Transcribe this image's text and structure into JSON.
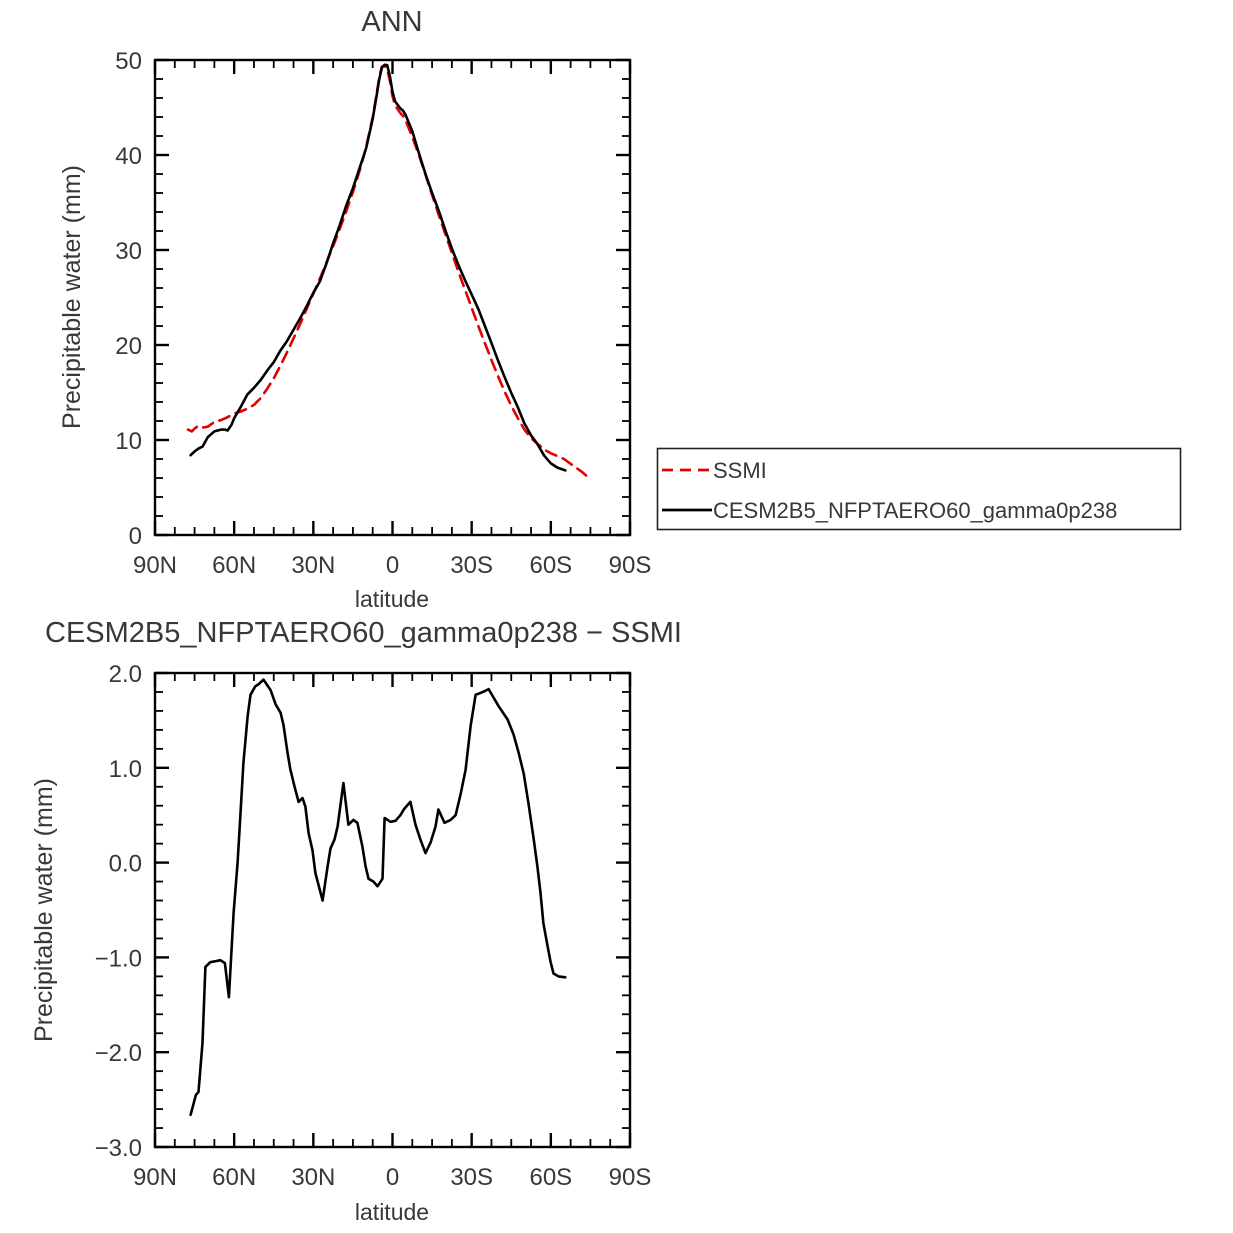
{
  "figure": {
    "background": "#ffffff",
    "text_color": "#383838",
    "axis_color": "#000000"
  },
  "legend": {
    "entries": [
      {
        "label": "SSMI",
        "color": "#e50000",
        "dashed": true
      },
      {
        "label": "CESM2B5_NFPTAERO60_gamma0p238",
        "color": "#000000",
        "dashed": false
      }
    ]
  },
  "chart_data": [
    {
      "type": "line",
      "title": "ANN",
      "xlabel": "latitude",
      "ylabel": "Precipitable water (mm)",
      "xlim": [
        90,
        -90
      ],
      "ylim": [
        0,
        50
      ],
      "grid": false,
      "legend_position": "outside-right",
      "x_ticks": [
        90,
        60,
        30,
        0,
        -30,
        -60,
        -90
      ],
      "x_tick_labels": [
        "90N",
        "60N",
        "30N",
        "0",
        "30S",
        "60S",
        "90S"
      ],
      "y_ticks": [
        0,
        10,
        20,
        30,
        40,
        50
      ],
      "y_tick_labels": [
        "0",
        "10",
        "20",
        "30",
        "40",
        "50"
      ],
      "series": [
        {
          "name": "SSMI",
          "color": "#e50000",
          "dashed": true,
          "points": [
            [
              77.5,
              11.1
            ],
            [
              76,
              10.9
            ],
            [
              75,
              11.2
            ],
            [
              73.5,
              11.5
            ],
            [
              72,
              11.3
            ],
            [
              70,
              11.4
            ],
            [
              67.5,
              11.9
            ],
            [
              65,
              12.1
            ],
            [
              62.5,
              12.4
            ],
            [
              60,
              12.8
            ],
            [
              57.5,
              13.0
            ],
            [
              55,
              13.3
            ],
            [
              52.5,
              13.7
            ],
            [
              50,
              14.4
            ],
            [
              47.5,
              15.4
            ],
            [
              45,
              16.5
            ],
            [
              42.5,
              17.8
            ],
            [
              40,
              19.2
            ],
            [
              37.5,
              20.7
            ],
            [
              35,
              22.2
            ],
            [
              32.5,
              23.8
            ],
            [
              30,
              25.4
            ],
            [
              27.5,
              27.0
            ],
            [
              25,
              28.7
            ],
            [
              22.5,
              30.4
            ],
            [
              20,
              32.2
            ],
            [
              17.5,
              34.1
            ],
            [
              15,
              36.1
            ],
            [
              12.5,
              38.3
            ],
            [
              10,
              40.8
            ],
            [
              7.5,
              44.0
            ],
            [
              6,
              46.5
            ],
            [
              5,
              48.2
            ],
            [
              4,
              49.3
            ],
            [
              3,
              49.4
            ],
            [
              2,
              49.0
            ],
            [
              1,
              47.8
            ],
            [
              0,
              46.2
            ],
            [
              -1,
              45.2
            ],
            [
              -2,
              44.8
            ],
            [
              -3,
              44.4
            ],
            [
              -4,
              44.1
            ],
            [
              -5,
              43.6
            ],
            [
              -7.5,
              41.9
            ],
            [
              -10,
              40.0
            ],
            [
              -12.5,
              37.9
            ],
            [
              -15,
              35.8
            ],
            [
              -17.5,
              33.7
            ],
            [
              -20,
              31.7
            ],
            [
              -22.5,
              29.7
            ],
            [
              -25,
              27.7
            ],
            [
              -27.5,
              25.8
            ],
            [
              -30,
              23.9
            ],
            [
              -32.5,
              22.0
            ],
            [
              -35,
              20.2
            ],
            [
              -37.5,
              18.4
            ],
            [
              -40,
              16.7
            ],
            [
              -42.5,
              15.1
            ],
            [
              -45,
              13.6
            ],
            [
              -47.5,
              12.3
            ],
            [
              -50,
              11.1
            ],
            [
              -52.5,
              10.2
            ],
            [
              -55,
              9.6
            ],
            [
              -57.5,
              9.0
            ],
            [
              -60,
              8.6
            ],
            [
              -62.5,
              8.3
            ],
            [
              -65,
              8.0
            ],
            [
              -67.5,
              7.5
            ],
            [
              -70,
              7.0
            ],
            [
              -72,
              6.6
            ],
            [
              -74,
              6.1
            ]
          ]
        },
        {
          "name": "CESM2B5_NFPTAERO60_gamma0p238",
          "color": "#000000",
          "dashed": false,
          "points": [
            [
              76.5,
              8.4
            ],
            [
              75,
              8.8
            ],
            [
              73.5,
              9.1
            ],
            [
              72,
              9.3
            ],
            [
              70,
              10.3
            ],
            [
              67.5,
              10.9
            ],
            [
              65,
              11.1
            ],
            [
              63.5,
              11.1
            ],
            [
              62.5,
              11.0
            ],
            [
              61,
              11.6
            ],
            [
              60,
              12.3
            ],
            [
              57.5,
              13.5
            ],
            [
              55,
              14.8
            ],
            [
              52.5,
              15.5
            ],
            [
              50,
              16.3
            ],
            [
              47.5,
              17.3
            ],
            [
              45,
              18.2
            ],
            [
              42.5,
              19.4
            ],
            [
              40,
              20.4
            ],
            [
              37.5,
              21.6
            ],
            [
              35,
              22.8
            ],
            [
              32.5,
              24.1
            ],
            [
              30,
              25.5
            ],
            [
              27.5,
              26.7
            ],
            [
              25,
              28.6
            ],
            [
              22.5,
              30.7
            ],
            [
              20,
              32.6
            ],
            [
              17.5,
              34.7
            ],
            [
              15,
              36.5
            ],
            [
              12.5,
              38.6
            ],
            [
              10,
              40.7
            ],
            [
              7.5,
              43.8
            ],
            [
              6,
              46.3
            ],
            [
              5,
              48.0
            ],
            [
              4,
              49.2
            ],
            [
              3,
              49.5
            ],
            [
              2,
              49.45
            ],
            [
              1,
              48.3
            ],
            [
              0,
              46.65
            ],
            [
              -1,
              45.65
            ],
            [
              -2,
              45.25
            ],
            [
              -3,
              44.9
            ],
            [
              -4,
              44.65
            ],
            [
              -5,
              44.2
            ],
            [
              -7.5,
              42.5
            ],
            [
              -10,
              40.2
            ],
            [
              -12.5,
              38.0
            ],
            [
              -15,
              36.0
            ],
            [
              -17.5,
              34.15
            ],
            [
              -20,
              32.1
            ],
            [
              -22.5,
              30.15
            ],
            [
              -25,
              28.4
            ],
            [
              -27.5,
              26.8
            ],
            [
              -30,
              25.3
            ],
            [
              -32.5,
              23.8
            ],
            [
              -35,
              22.0
            ],
            [
              -37.5,
              20.2
            ],
            [
              -40,
              18.35
            ],
            [
              -42.5,
              16.6
            ],
            [
              -45,
              14.95
            ],
            [
              -47.5,
              13.45
            ],
            [
              -50,
              11.75
            ],
            [
              -52.5,
              10.5
            ],
            [
              -55,
              9.55
            ],
            [
              -57.5,
              8.35
            ],
            [
              -60,
              7.55
            ],
            [
              -62.5,
              7.1
            ],
            [
              -65.5,
              6.8
            ]
          ]
        }
      ]
    },
    {
      "type": "line",
      "title": "CESM2B5_NFPTAERO60_gamma0p238 − SSMI",
      "xlabel": "latitude",
      "ylabel": "Precipitable water (mm)",
      "xlim": [
        90,
        -90
      ],
      "ylim": [
        -3.0,
        2.0
      ],
      "grid": false,
      "x_ticks": [
        90,
        60,
        30,
        0,
        -30,
        -60,
        -90
      ],
      "x_tick_labels": [
        "90N",
        "60N",
        "30N",
        "0",
        "30S",
        "60S",
        "90S"
      ],
      "y_ticks": [
        -3.0,
        -2.0,
        -1.0,
        0.0,
        1.0,
        2.0
      ],
      "y_tick_labels": [
        "−3.0",
        "−2.0",
        "−1.0",
        "0.0",
        "1.0",
        "2.0"
      ],
      "series": [
        {
          "name": "CESM2B5_NFPTAERO60_gamma0p238 minus SSMI",
          "color": "#000000",
          "dashed": false,
          "points": [
            [
              76.5,
              -2.66
            ],
            [
              74.5,
              -2.45
            ],
            [
              73.5,
              -2.42
            ],
            [
              72,
              -1.9
            ],
            [
              70.9,
              -1.1
            ],
            [
              69,
              -1.05
            ],
            [
              67,
              -1.04
            ],
            [
              65.2,
              -1.03
            ],
            [
              63.5,
              -1.06
            ],
            [
              62,
              -1.42
            ],
            [
              60.2,
              -0.53
            ],
            [
              58.7,
              0.0
            ],
            [
              57.6,
              0.52
            ],
            [
              56.5,
              1.05
            ],
            [
              54.9,
              1.54
            ],
            [
              53.8,
              1.77
            ],
            [
              52,
              1.86
            ],
            [
              50.8,
              1.88
            ],
            [
              48.9,
              1.93
            ],
            [
              46.2,
              1.82
            ],
            [
              44.3,
              1.67
            ],
            [
              42.4,
              1.58
            ],
            [
              41.3,
              1.45
            ],
            [
              39.8,
              1.16
            ],
            [
              38.7,
              0.98
            ],
            [
              37.1,
              0.8
            ],
            [
              35.6,
              0.64
            ],
            [
              34.1,
              0.68
            ],
            [
              33,
              0.59
            ],
            [
              31.8,
              0.31
            ],
            [
              30.3,
              0.13
            ],
            [
              29.2,
              -0.11
            ],
            [
              26.5,
              -0.4
            ],
            [
              24.6,
              -0.04
            ],
            [
              23.5,
              0.15
            ],
            [
              22,
              0.24
            ],
            [
              20.8,
              0.38
            ],
            [
              18.6,
              0.84
            ],
            [
              16.7,
              0.4
            ],
            [
              14.8,
              0.45
            ],
            [
              13.3,
              0.42
            ],
            [
              11.4,
              0.17
            ],
            [
              10.2,
              -0.04
            ],
            [
              9.1,
              -0.17
            ],
            [
              7.2,
              -0.2
            ],
            [
              5.7,
              -0.25
            ],
            [
              3.8,
              -0.17
            ],
            [
              3,
              0.47
            ],
            [
              0.8,
              0.43
            ],
            [
              -1.1,
              0.44
            ],
            [
              -3,
              0.5
            ],
            [
              -4.5,
              0.57
            ],
            [
              -6.8,
              0.64
            ],
            [
              -8.7,
              0.4
            ],
            [
              -10.6,
              0.24
            ],
            [
              -12.5,
              0.1
            ],
            [
              -14.4,
              0.21
            ],
            [
              -16.3,
              0.38
            ],
            [
              -17.4,
              0.56
            ],
            [
              -19.7,
              0.42
            ],
            [
              -22,
              0.45
            ],
            [
              -23.9,
              0.5
            ],
            [
              -25.8,
              0.72
            ],
            [
              -27.7,
              0.98
            ],
            [
              -29.6,
              1.44
            ],
            [
              -31.5,
              1.77
            ],
            [
              -33.4,
              1.79
            ],
            [
              -35,
              1.81
            ],
            [
              -36.4,
              1.83
            ],
            [
              -38.3,
              1.74
            ],
            [
              -40.2,
              1.65
            ],
            [
              -43.6,
              1.51
            ],
            [
              -45.9,
              1.35
            ],
            [
              -47.8,
              1.16
            ],
            [
              -49.7,
              0.94
            ],
            [
              -51.5,
              0.63
            ],
            [
              -53.4,
              0.27
            ],
            [
              -54.9,
              -0.04
            ],
            [
              -56.1,
              -0.32
            ],
            [
              -57.2,
              -0.64
            ],
            [
              -58.7,
              -0.87
            ],
            [
              -59.9,
              -1.05
            ],
            [
              -61,
              -1.17
            ],
            [
              -62.9,
              -1.2
            ],
            [
              -65.5,
              -1.21
            ]
          ]
        }
      ]
    }
  ]
}
